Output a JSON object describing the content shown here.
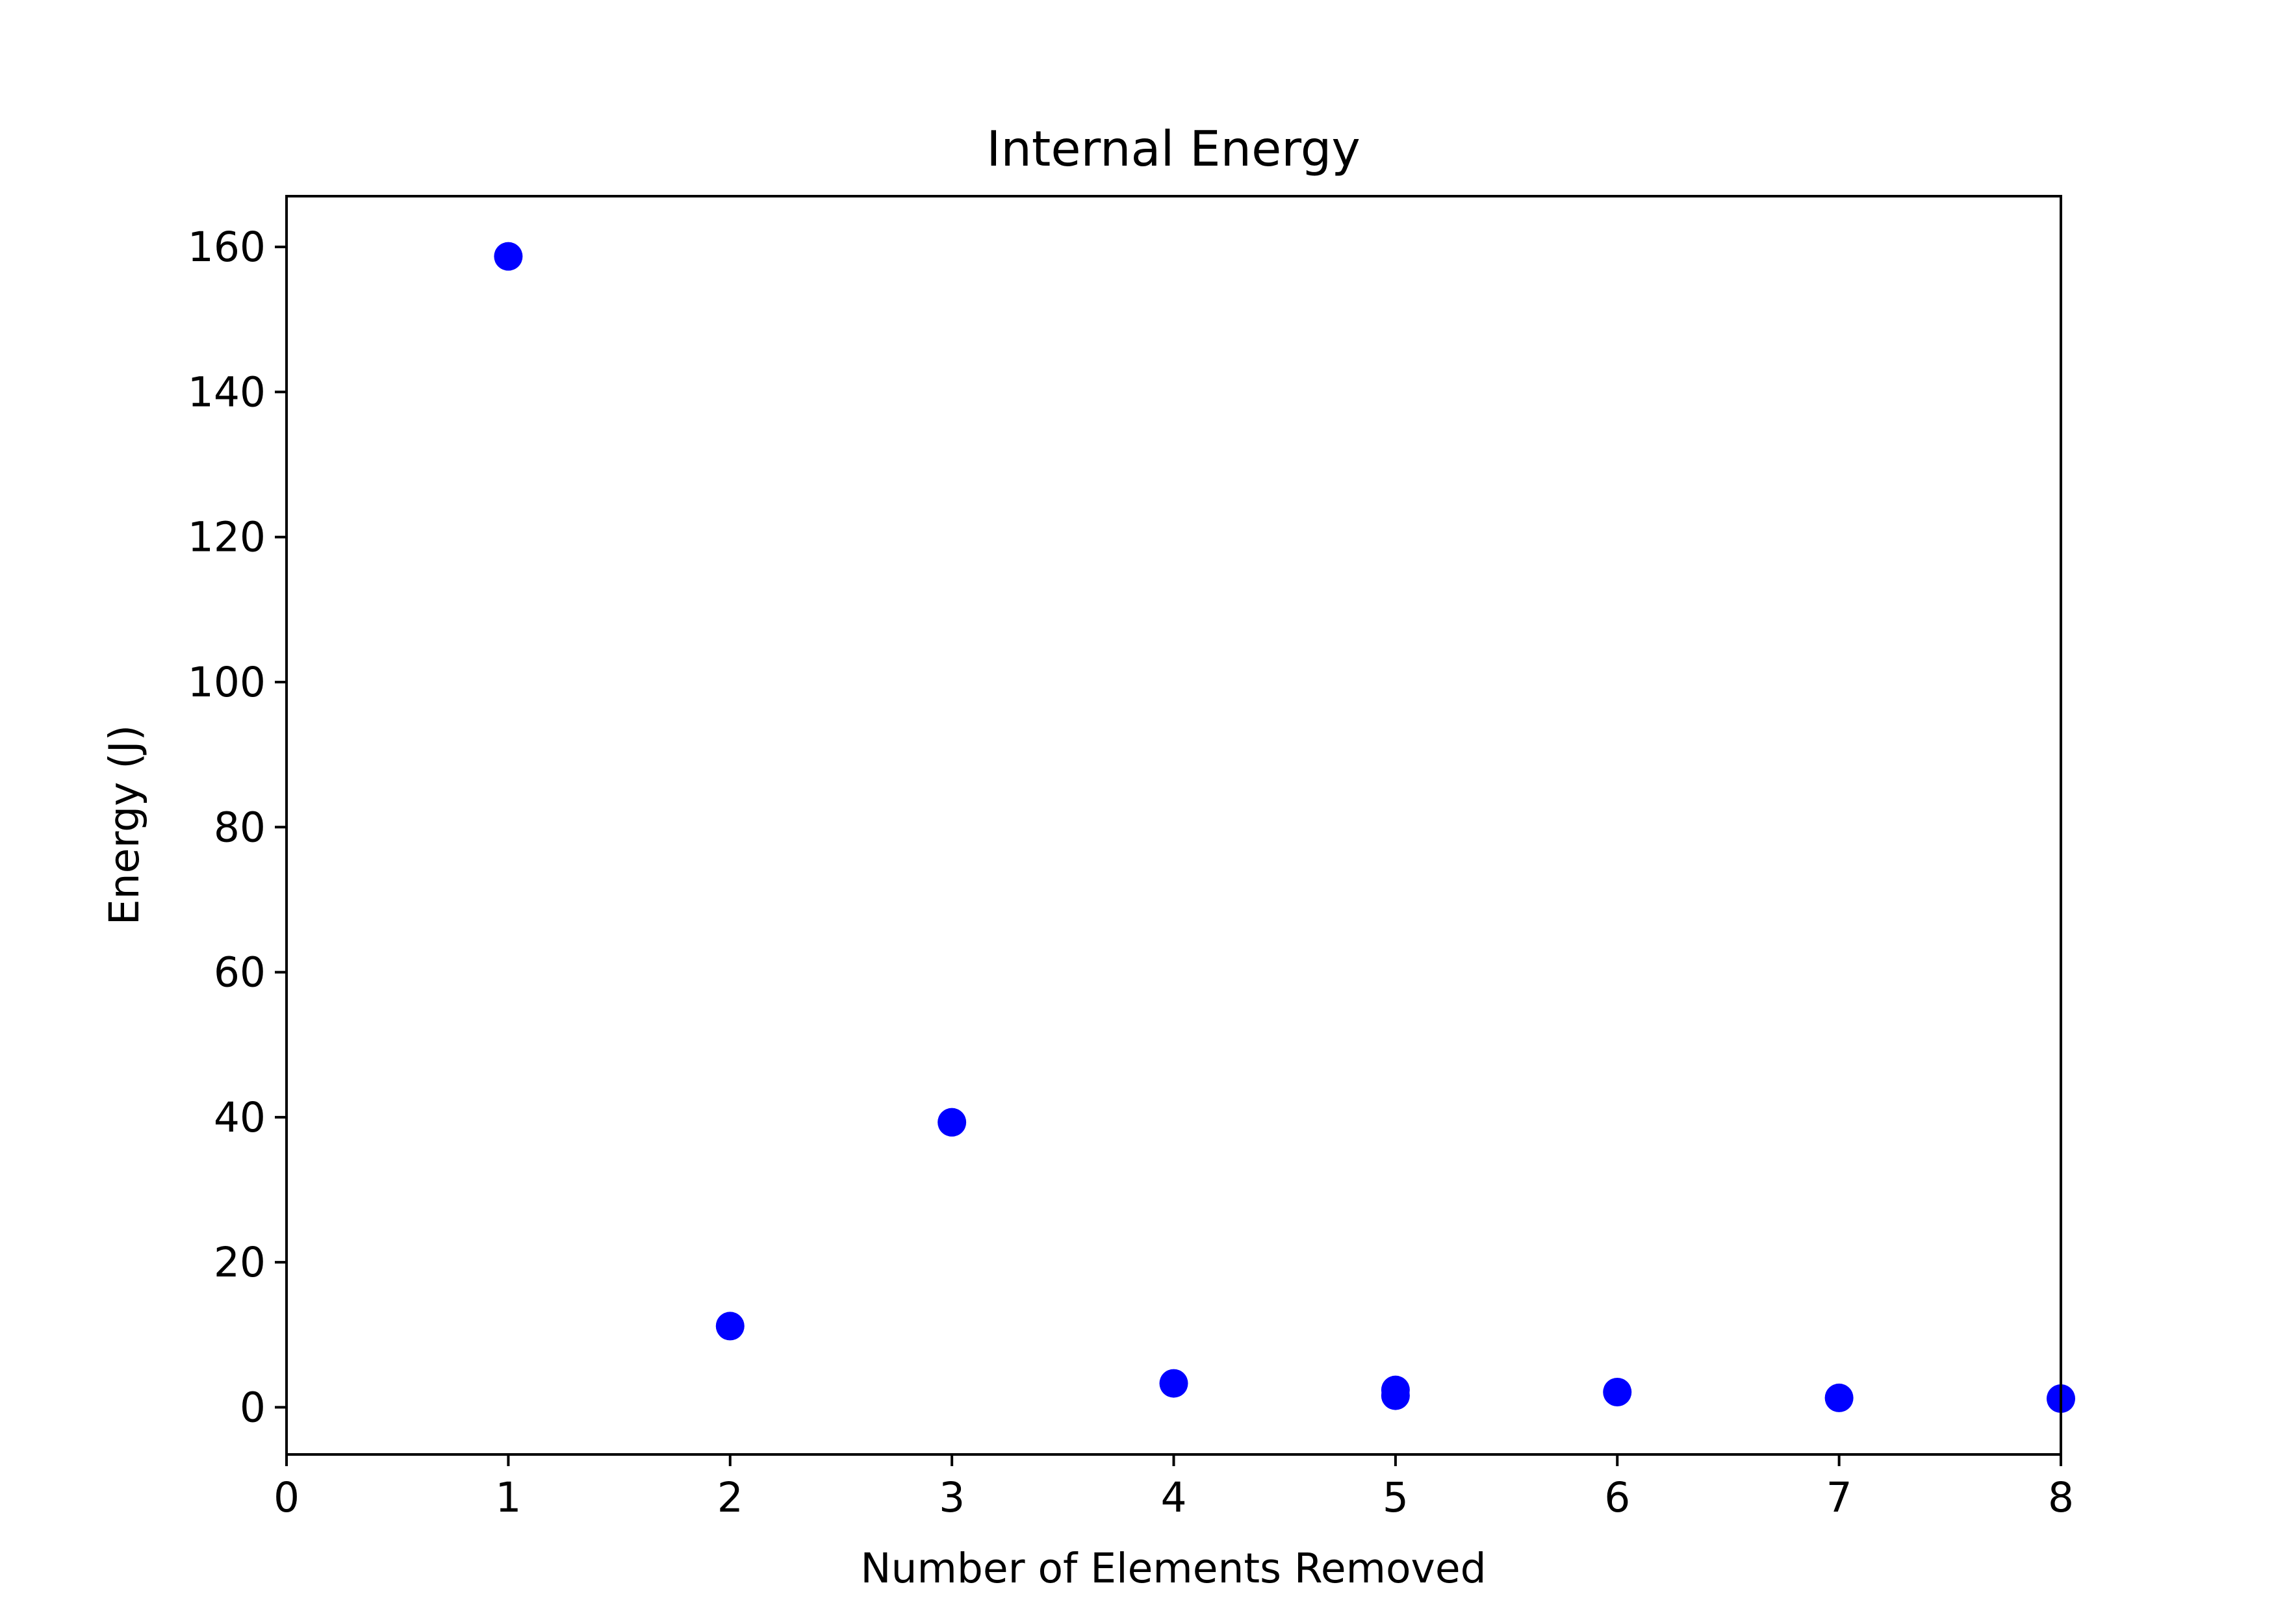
{
  "chart_data": {
    "type": "scatter",
    "title": "Internal Energy",
    "xlabel": "Number of Elements Removed",
    "ylabel": "Energy (J)",
    "xlim": [
      0,
      8
    ],
    "ylim": [
      -6.5,
      167
    ],
    "xticks": [
      0,
      1,
      2,
      3,
      4,
      5,
      6,
      7,
      8
    ],
    "yticks": [
      0,
      20,
      40,
      60,
      80,
      100,
      120,
      140,
      160
    ],
    "grid": false,
    "marker_color": "#0000ff",
    "points": [
      {
        "x": 1,
        "y": 158.7
      },
      {
        "x": 2,
        "y": 11.2
      },
      {
        "x": 3,
        "y": 39.3
      },
      {
        "x": 4,
        "y": 3.3
      },
      {
        "x": 5,
        "y": 2.4
      },
      {
        "x": 5,
        "y": 1.6
      },
      {
        "x": 6,
        "y": 2.1
      },
      {
        "x": 7,
        "y": 1.3
      },
      {
        "x": 8,
        "y": 1.2
      }
    ]
  }
}
